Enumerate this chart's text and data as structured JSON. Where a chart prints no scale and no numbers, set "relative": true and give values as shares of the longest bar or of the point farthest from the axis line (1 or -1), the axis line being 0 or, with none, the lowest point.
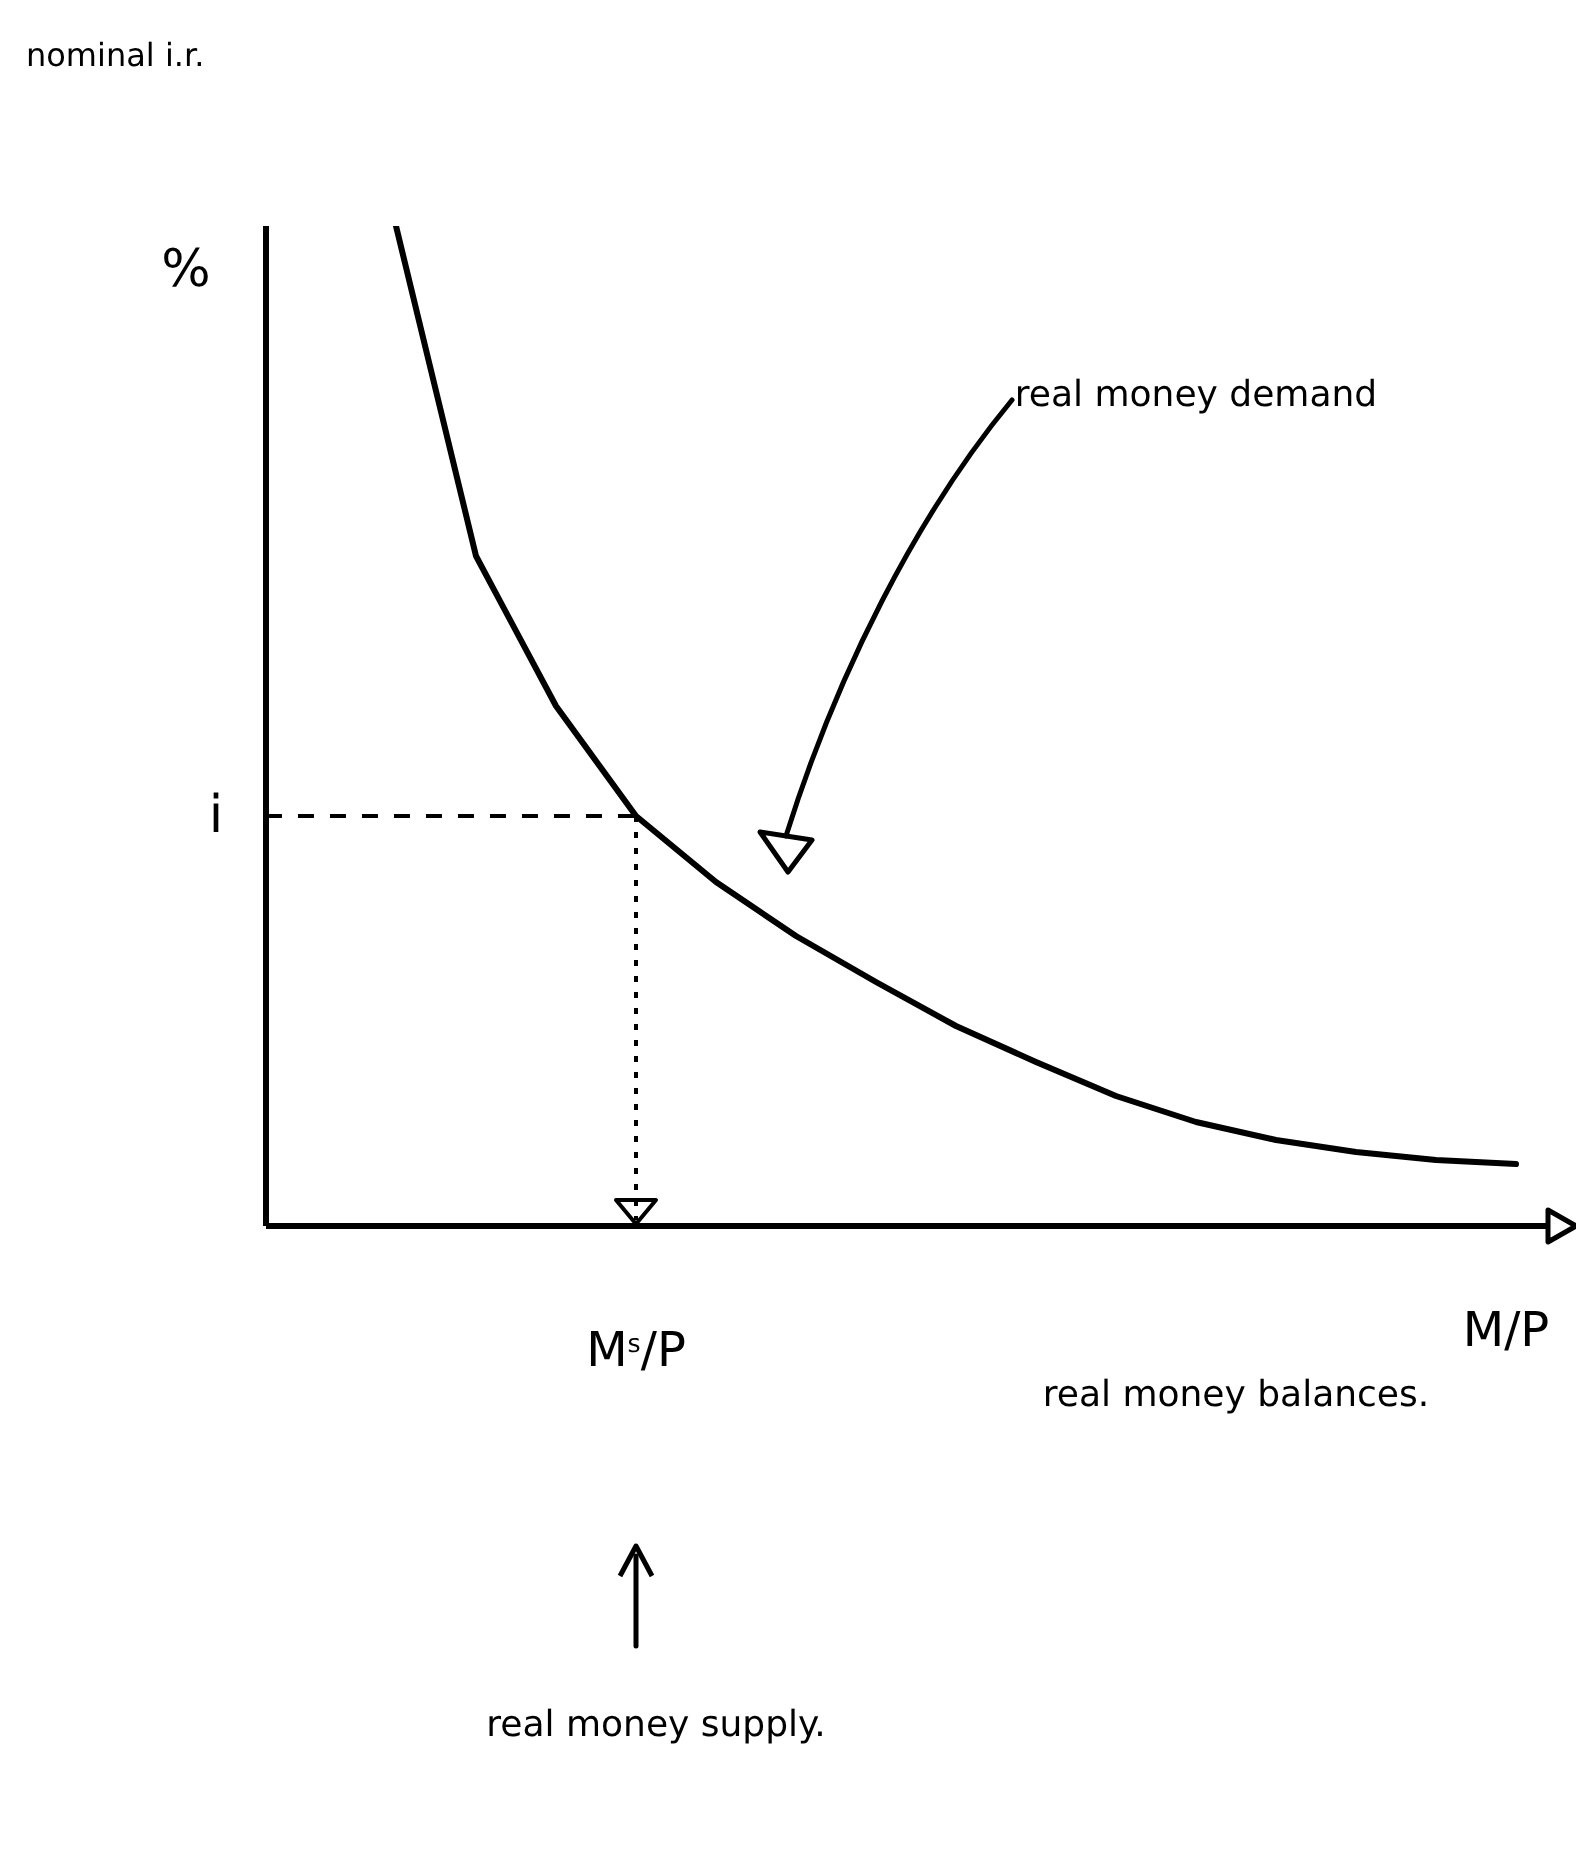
{
  "chart_data": {
    "type": "line",
    "relative": true,
    "title": "nominal i.r.",
    "ylabel": "%",
    "xlabel": "real money balances.",
    "categories": [
      null,
      null,
      null,
      null,
      null,
      null,
      null,
      null,
      null,
      null,
      null,
      null,
      null,
      null,
      null
    ],
    "series": [
      {
        "color": "#000000",
        "values": [
          1.0,
          0.67,
          0.52,
          0.41,
          0.344,
          0.29,
          0.244,
          0.2,
          0.164,
          0.13,
          0.104,
          0.086,
          0.074,
          0.066,
          0.062
        ]
      }
    ],
    "ref_lines": [
      {
        "axis": "y",
        "value": 0.41,
        "label": "i",
        "line_style": "dashed",
        "color": "#000000"
      }
    ],
    "annotations": [
      "M/P",
      "M$^{s}$/P",
      "real money demand",
      "real money supply."
    ],
    "marker": "none",
    "grid": false,
    "legend": false
  }
}
